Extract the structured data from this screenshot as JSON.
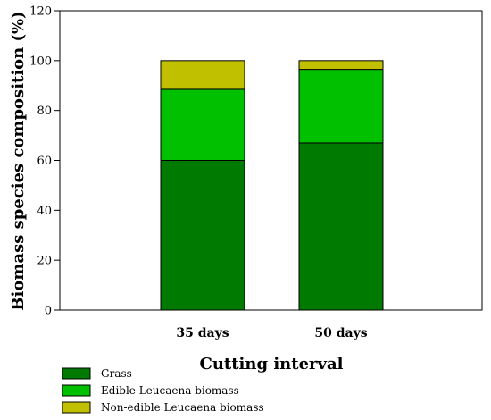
{
  "chart_data": {
    "type": "bar",
    "stacked": true,
    "categories": [
      "35 days",
      "50 days"
    ],
    "series": [
      {
        "name": "Grass",
        "values": [
          60,
          67
        ],
        "color": "#007a00"
      },
      {
        "name": "Edible Leucaena biomass",
        "values": [
          28.5,
          29.5
        ],
        "color": "#00c000"
      },
      {
        "name": "Non-edible Leucaena biomass",
        "values": [
          11.5,
          3.5
        ],
        "color": "#c0c000"
      }
    ],
    "xlabel": "Cutting interval",
    "ylabel": "Biomass species composition (%)",
    "ylim": [
      0,
      120
    ],
    "yticks": [
      "0",
      "20",
      "40",
      "60",
      "80",
      "100",
      "120"
    ],
    "grid": false,
    "legend_position": "bottom-left"
  }
}
